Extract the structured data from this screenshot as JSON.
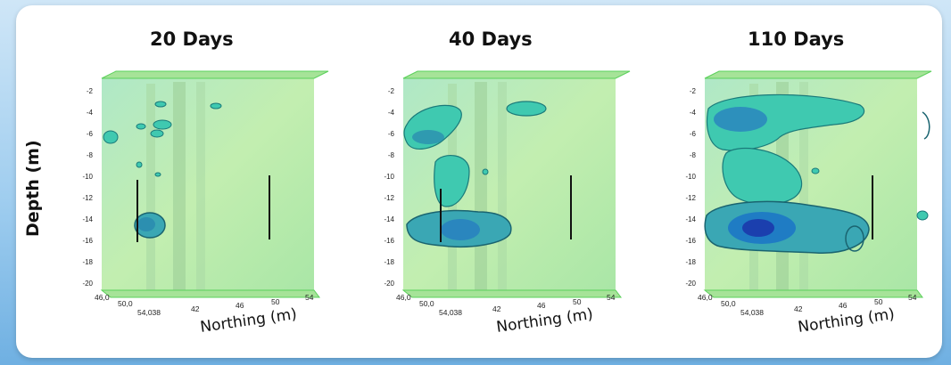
{
  "y_axis_label": "Depth (m)",
  "panels": [
    {
      "title": "20 Days",
      "x_axis_label": "Northing (m)",
      "depth_ticks": [
        "-2",
        "-4",
        "-6",
        "-8",
        "-10",
        "-12",
        "-14",
        "-16",
        "-18",
        "-20"
      ],
      "northing_ticks": [
        "46,0",
        "50,0",
        "54,038",
        "42",
        "46",
        "50",
        "54"
      ]
    },
    {
      "title": "40 Days",
      "x_axis_label": "Northing (m)",
      "depth_ticks": [
        "-2",
        "-4",
        "-6",
        "-8",
        "-10",
        "-12",
        "-14",
        "-16",
        "-18",
        "-20"
      ],
      "northing_ticks": [
        "46,0",
        "50,0",
        "54,038",
        "42",
        "46",
        "50",
        "54"
      ]
    },
    {
      "title": "110 Days",
      "x_axis_label": "Northing (m)",
      "depth_ticks": [
        "-2",
        "-4",
        "-6",
        "-8",
        "-10",
        "-12",
        "-14",
        "-16",
        "-18",
        "-20"
      ],
      "northing_ticks": [
        "46,0",
        "50,0",
        "54,038",
        "42",
        "46",
        "50",
        "54"
      ]
    }
  ],
  "colors": {
    "volume_fill": "#b8eaa0",
    "plume_light": "#3fc9b0",
    "plume_mid": "#1f9fc8",
    "plume_dark": "#1b3fae",
    "border_green": "#5bd05b"
  }
}
